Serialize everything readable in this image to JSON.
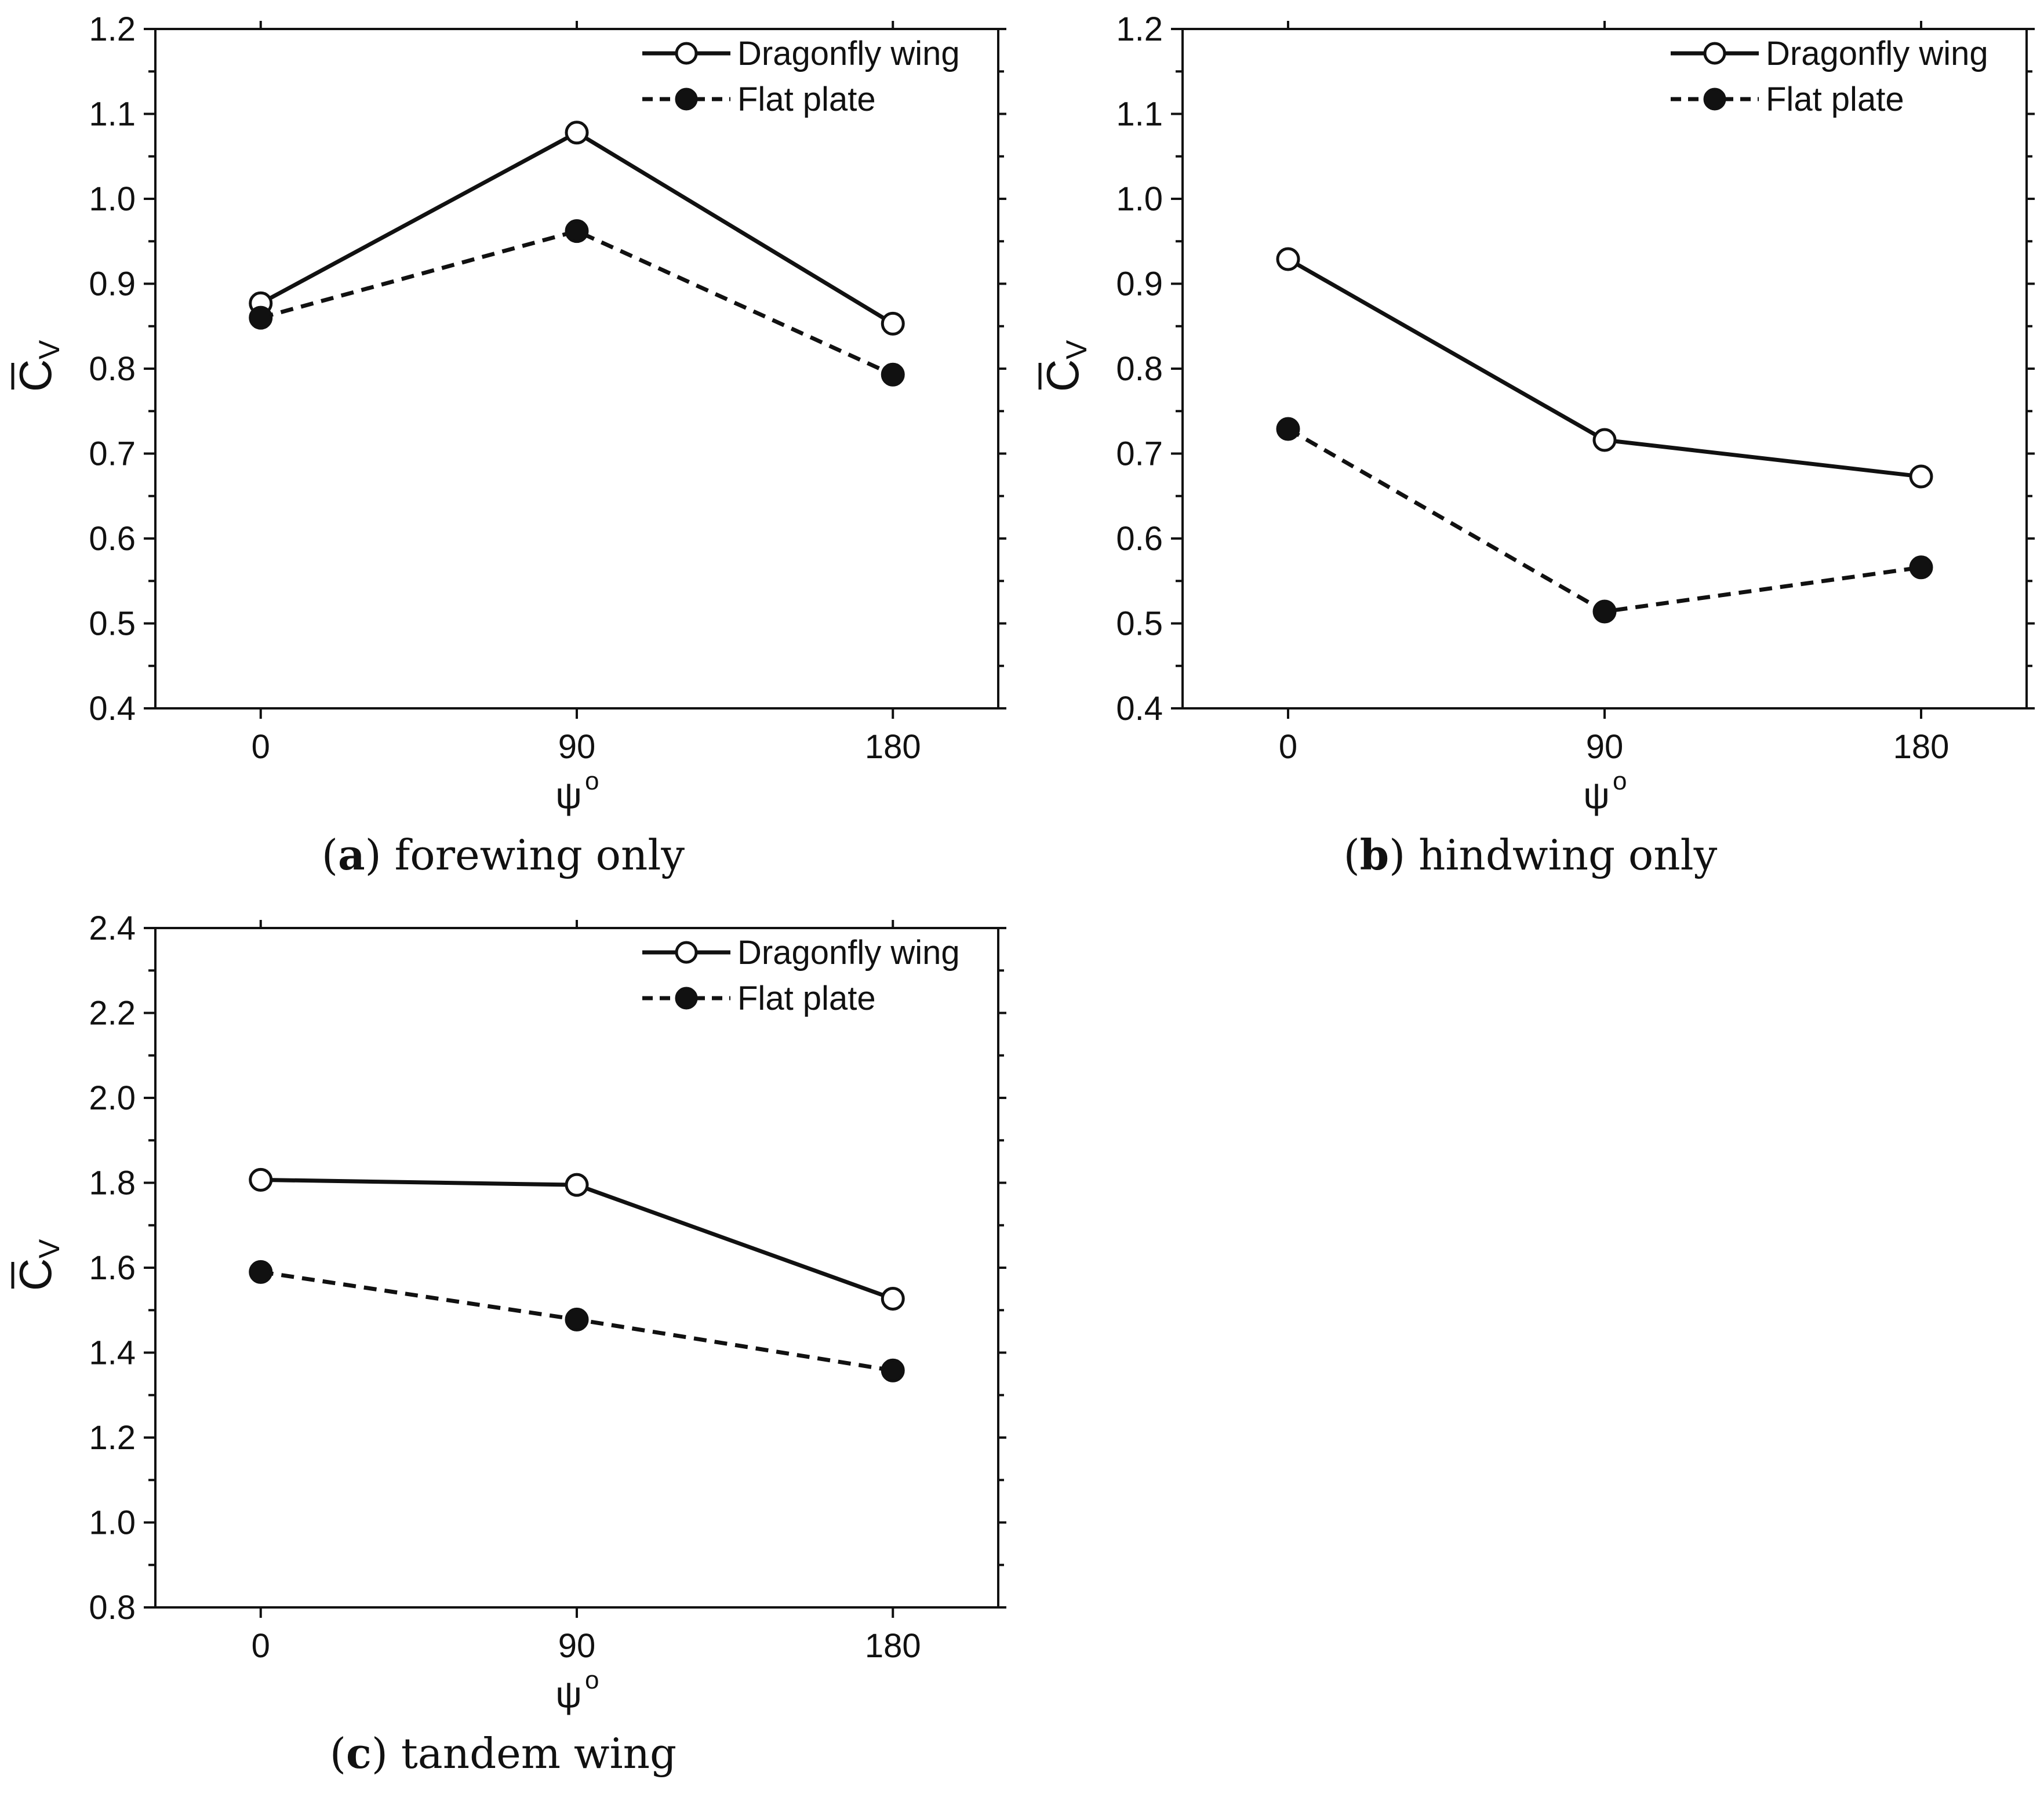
{
  "panels": [
    {
      "caption_letter": "a",
      "caption_text": "forewing only",
      "legend": {
        "series_1": "Dragonfly wing",
        "series_2": "Flat plate"
      },
      "ylabel_main": "C",
      "ylabel_sub": "V",
      "xlabel_main": "ψ",
      "xlabel_sup": "o"
    },
    {
      "caption_letter": "b",
      "caption_text": "hindwing only",
      "legend": {
        "series_1": "Dragonfly wing",
        "series_2": "Flat plate"
      },
      "ylabel_main": "C",
      "ylabel_sub": "V",
      "xlabel_main": "ψ",
      "xlabel_sup": "o"
    },
    {
      "caption_letter": "c",
      "caption_text": "tandem wing",
      "legend": {
        "series_1": "Dragonfly wing",
        "series_2": "Flat plate"
      },
      "ylabel_main": "C",
      "ylabel_sub": "V",
      "xlabel_main": "ψ",
      "xlabel_sup": "o"
    }
  ],
  "chart_data": [
    {
      "type": "line",
      "x": [
        0,
        90,
        180
      ],
      "xticks": [
        "0",
        "90",
        "180"
      ],
      "xlim": [
        -30,
        210
      ],
      "ylim": [
        0.4,
        1.2
      ],
      "yticks": [
        "0.4",
        "0.5",
        "0.6",
        "0.7",
        "0.8",
        "0.9",
        "1.0",
        "1.1",
        "1.2"
      ],
      "xlabel": "ψ°",
      "ylabel": "C̅V",
      "legend_position": "top-right",
      "series": [
        {
          "name": "Dragonfly wing",
          "values": [
            0.877,
            1.078,
            0.853
          ],
          "line": "solid",
          "marker": "open-circle"
        },
        {
          "name": "Flat plate",
          "values": [
            0.86,
            0.962,
            0.793
          ],
          "line": "dashed",
          "marker": "filled-circle"
        }
      ]
    },
    {
      "type": "line",
      "x": [
        0,
        90,
        180
      ],
      "xticks": [
        "0",
        "90",
        "180"
      ],
      "xlim": [
        -30,
        210
      ],
      "ylim": [
        0.4,
        1.2
      ],
      "yticks": [
        "0.4",
        "0.5",
        "0.6",
        "0.7",
        "0.8",
        "0.9",
        "1.0",
        "1.1",
        "1.2"
      ],
      "xlabel": "ψ°",
      "ylabel": "C̅V",
      "legend_position": "top-right",
      "series": [
        {
          "name": "Dragonfly wing",
          "values": [
            0.929,
            0.716,
            0.673
          ],
          "line": "solid",
          "marker": "open-circle"
        },
        {
          "name": "Flat plate",
          "values": [
            0.729,
            0.514,
            0.566
          ],
          "line": "dashed",
          "marker": "filled-circle"
        }
      ]
    },
    {
      "type": "line",
      "x": [
        0,
        90,
        180
      ],
      "xticks": [
        "0",
        "90",
        "180"
      ],
      "xlim": [
        -30,
        210
      ],
      "ylim": [
        0.8,
        2.4
      ],
      "yticks": [
        "0.8",
        "1.0",
        "1.2",
        "1.4",
        "1.6",
        "1.8",
        "2.0",
        "2.2",
        "2.4"
      ],
      "xlabel": "ψ°",
      "ylabel": "C̅V",
      "legend_position": "top-right",
      "series": [
        {
          "name": "Dragonfly wing",
          "values": [
            1.807,
            1.795,
            1.527
          ],
          "line": "solid",
          "marker": "open-circle"
        },
        {
          "name": "Flat plate",
          "values": [
            1.59,
            1.478,
            1.358
          ],
          "line": "dashed",
          "marker": "filled-circle"
        }
      ]
    }
  ]
}
